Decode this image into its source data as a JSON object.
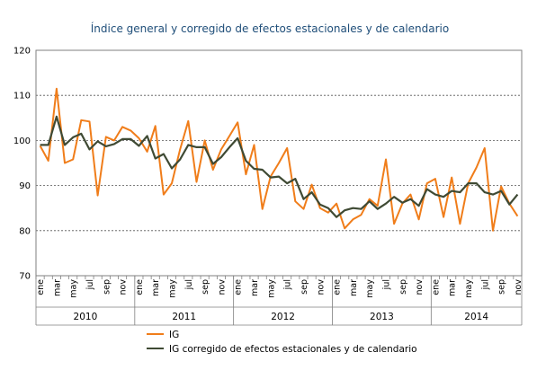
{
  "chart_data": {
    "type": "line",
    "title": "Índice general y corregido de efectos estacionales y de calendario",
    "xlabel": "",
    "ylabel": "",
    "ylim": [
      70,
      120
    ],
    "yticks": [
      70,
      80,
      90,
      100,
      110,
      120
    ],
    "grid": "horizontal dashed",
    "legend_position": "bottom-left",
    "month_labels": [
      "ene",
      "mar",
      "may",
      "jul",
      "sep",
      "nov"
    ],
    "years": [
      "2010",
      "2011",
      "2012",
      "2013",
      "2014"
    ],
    "series": [
      {
        "name": "IG",
        "color": "#f07d1a",
        "values": [
          98.8,
          95.5,
          111.5,
          95.0,
          95.8,
          104.5,
          104.2,
          87.8,
          100.8,
          100.0,
          103.0,
          102.2,
          100.5,
          97.5,
          103.2,
          88.0,
          90.5,
          98.0,
          104.3,
          90.8,
          100.0,
          93.5,
          98.0,
          101.0,
          104.0,
          92.5,
          99.0,
          84.8,
          92.0,
          95.0,
          98.3,
          86.5,
          84.8,
          90.2,
          85.0,
          84.0,
          86.0,
          80.5,
          82.5,
          83.5,
          87.0,
          85.5,
          95.8,
          81.5,
          86.0,
          88.0,
          82.5,
          90.5,
          91.5,
          83.0,
          91.8,
          81.5,
          90.5,
          94.0,
          98.3,
          80.0,
          89.8,
          86.0,
          83.2
        ]
      },
      {
        "name": "IG corregido de efectos estacionales y de calendario",
        "color": "#3f4a34",
        "values": [
          99.0,
          99.0,
          105.3,
          99.0,
          100.7,
          101.5,
          98.0,
          99.8,
          98.7,
          99.2,
          100.3,
          100.3,
          98.8,
          101.0,
          96.0,
          97.0,
          93.8,
          95.8,
          99.0,
          98.5,
          98.5,
          94.8,
          96.3,
          98.5,
          100.5,
          95.5,
          93.7,
          93.5,
          91.8,
          92.0,
          90.5,
          91.5,
          87.0,
          88.5,
          85.8,
          85.0,
          83.0,
          84.5,
          85.0,
          84.8,
          86.5,
          84.8,
          86.0,
          87.5,
          86.2,
          87.0,
          85.5,
          89.2,
          88.0,
          87.5,
          88.8,
          88.5,
          90.5,
          90.5,
          88.5,
          88.0,
          88.8,
          85.8,
          88.0
        ]
      }
    ]
  }
}
